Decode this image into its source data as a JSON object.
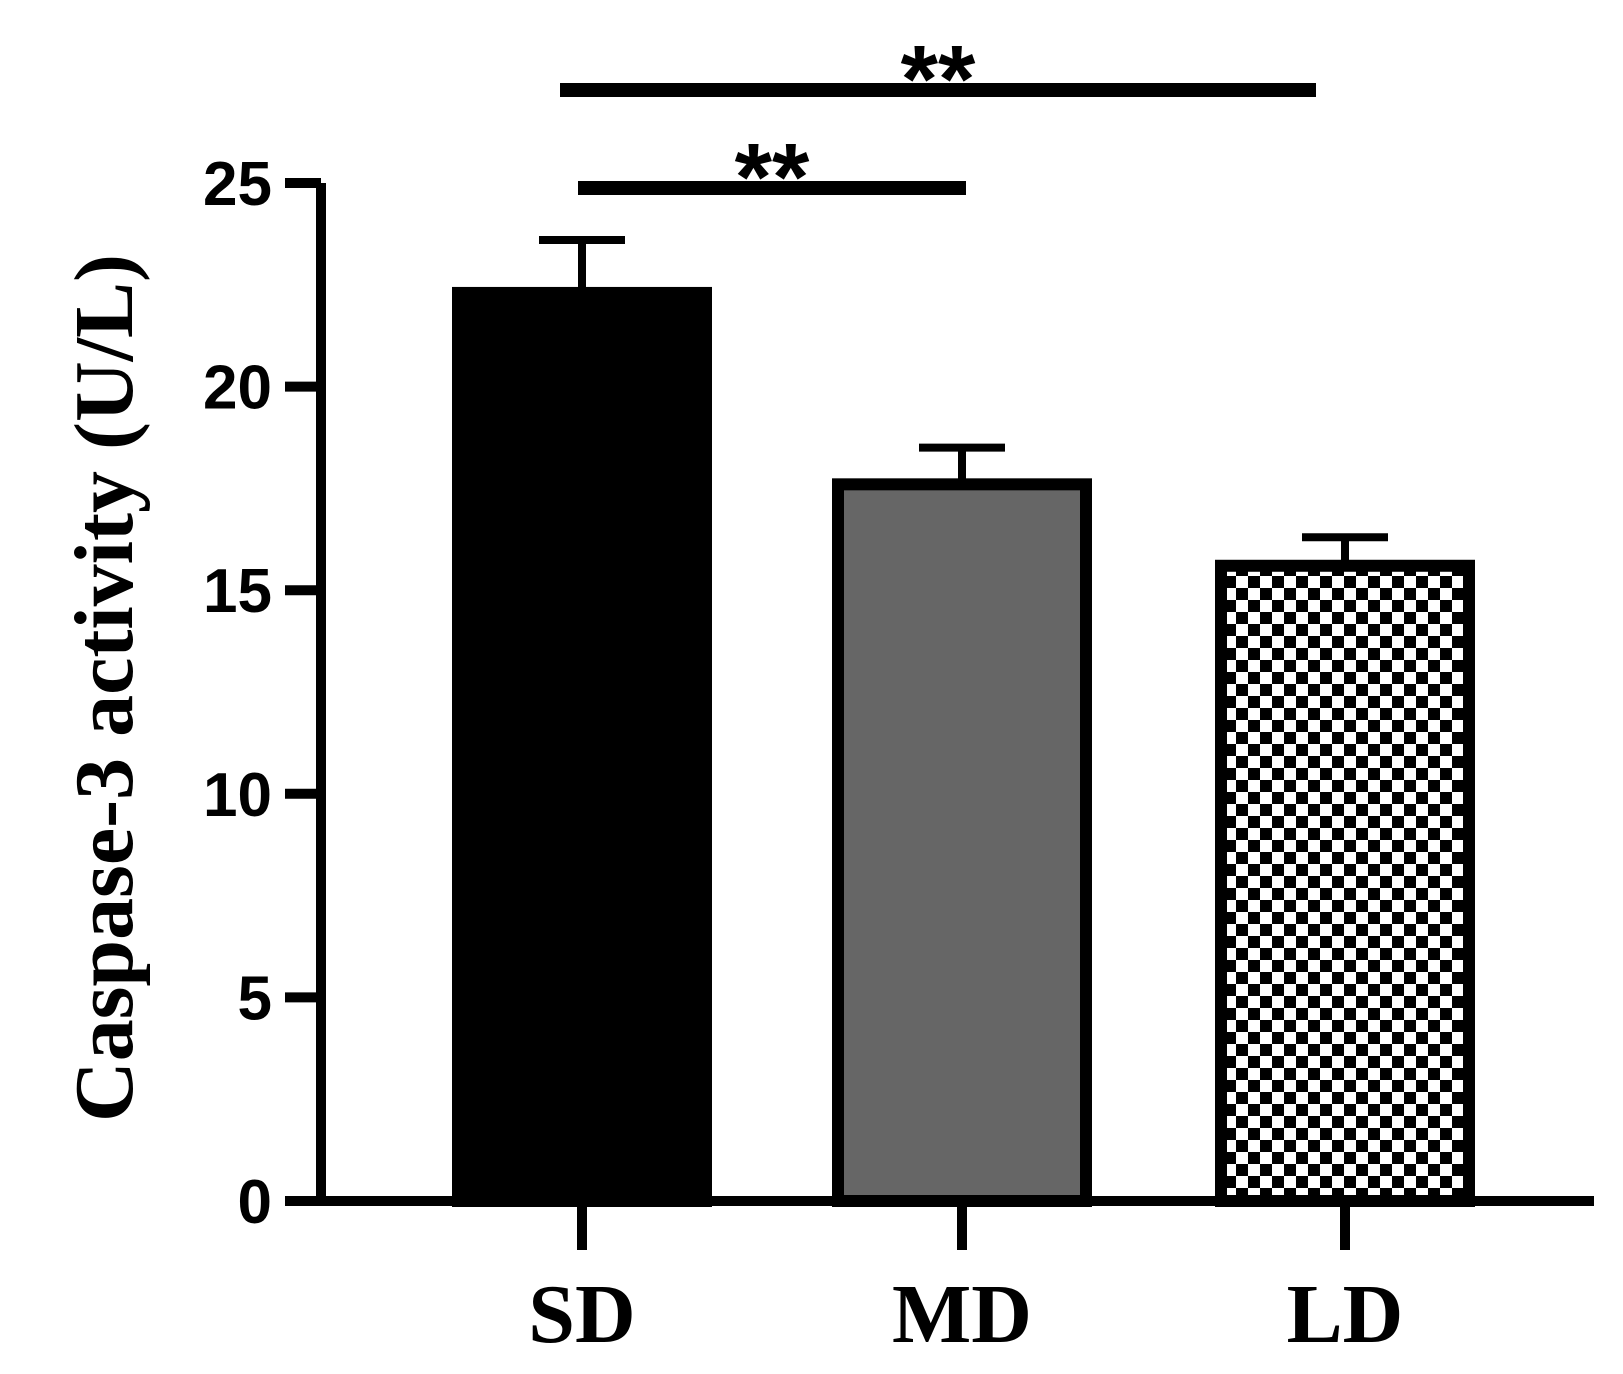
{
  "chart_data": {
    "type": "bar",
    "title": "",
    "xlabel": "",
    "ylabel": "Caspase-3 activity (U/L)",
    "categories": [
      "SD",
      "MD",
      "LD"
    ],
    "values": [
      22.3,
      17.6,
      15.6
    ],
    "errors": [
      1.3,
      0.9,
      0.7
    ],
    "ylim": [
      0,
      25
    ],
    "yticks": [
      0,
      5,
      10,
      15,
      20,
      25
    ],
    "bar_styles": [
      {
        "fill": "#000000",
        "pattern": "solid"
      },
      {
        "fill": "#666666",
        "pattern": "solid"
      },
      {
        "fill": "#ffffff",
        "pattern": "checkerboard"
      }
    ],
    "significance": [
      {
        "from": "SD",
        "to": "MD",
        "label": "**"
      },
      {
        "from": "SD",
        "to": "LD",
        "label": "**"
      }
    ],
    "grid": false,
    "legend": "none"
  }
}
